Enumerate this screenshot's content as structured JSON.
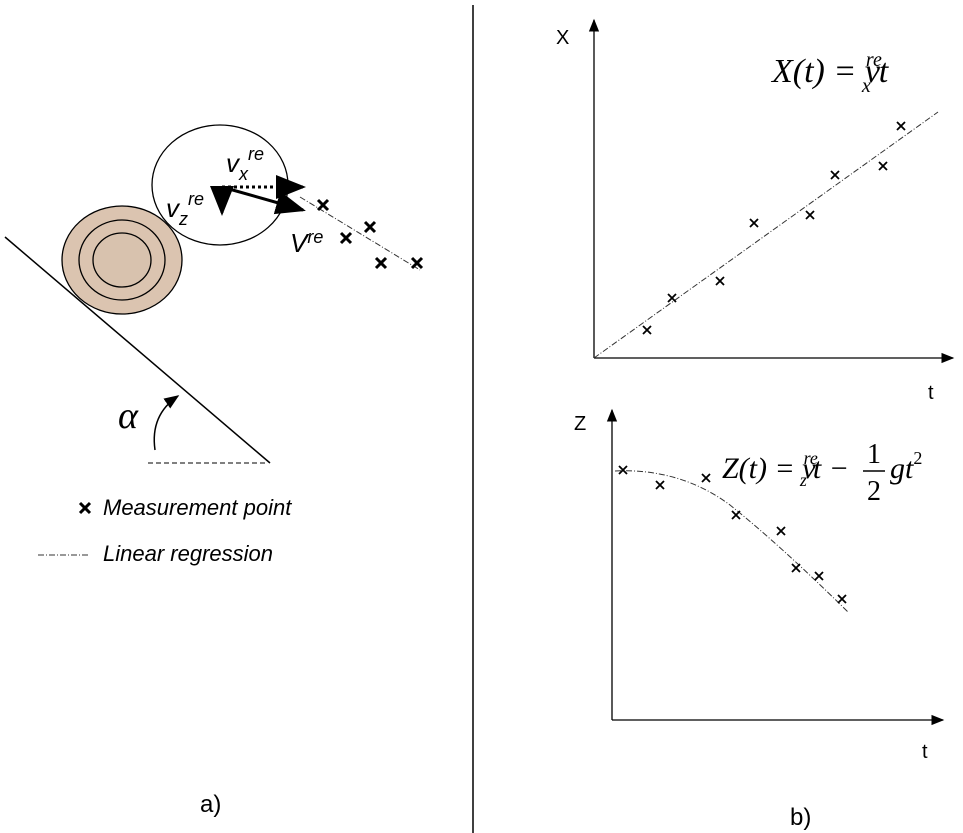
{
  "panel_a": {
    "velocity_x": {
      "base": "v",
      "sub": "x",
      "sup": "re"
    },
    "velocity_z": {
      "base": "v",
      "sub": "z",
      "sup": "re"
    },
    "velocity": {
      "base": "V",
      "sup": "re"
    },
    "angle": "α",
    "legend": [
      "Measurement point",
      "Linear regression"
    ],
    "caption": "a)"
  },
  "panel_b": {
    "top": {
      "y_label": "X",
      "x_label": "t",
      "equation": {
        "lhs": "X(t) = ",
        "v": "v",
        "sub": "x",
        "sup": "re",
        "rest": "t"
      }
    },
    "bottom": {
      "y_label": "Z",
      "x_label": "t",
      "equation": {
        "lhs": "Z(t) = ",
        "v": "v",
        "sub": "z",
        "sup": "re",
        "rest": "t − ",
        "num": "1",
        "den": "2",
        "tail": "gt",
        "pow": "2"
      }
    },
    "caption": "b)"
  }
}
